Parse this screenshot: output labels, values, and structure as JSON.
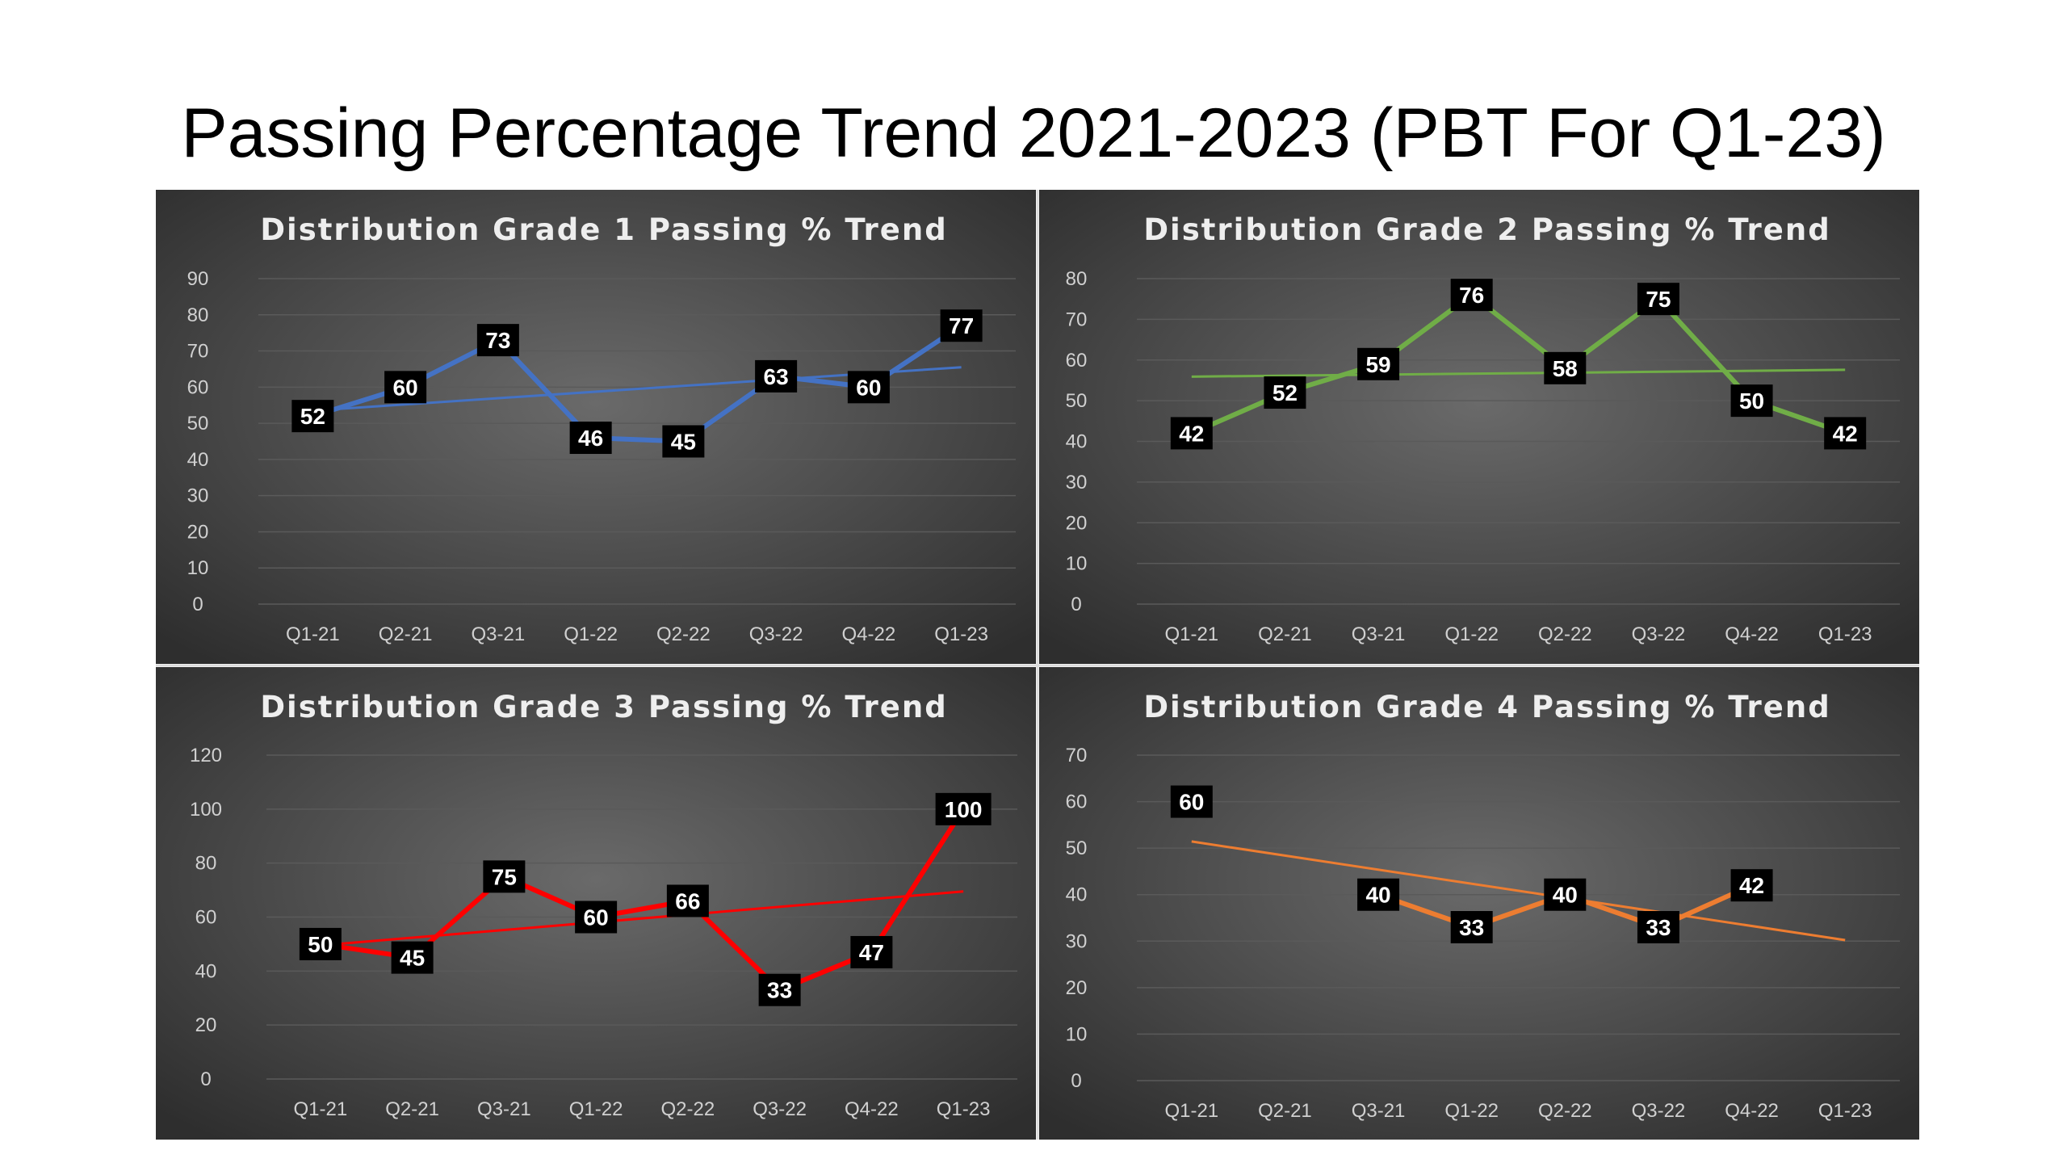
{
  "page_title": "Passing Percentage Trend 2021-2023 (PBT For Q1-23)",
  "chart_data": [
    {
      "type": "line",
      "title": "Distribution Grade 1 Passing % Trend",
      "categories": [
        "Q1-21",
        "Q2-21",
        "Q3-21",
        "Q1-22",
        "Q2-22",
        "Q3-22",
        "Q4-22",
        "Q1-23"
      ],
      "values": [
        52,
        60,
        73,
        46,
        45,
        63,
        60,
        77
      ],
      "ylim": [
        0,
        90
      ],
      "yticks": [
        0,
        10,
        20,
        30,
        40,
        50,
        60,
        70,
        80,
        90
      ],
      "color": "#4472c4",
      "trendline": "linear",
      "grid": true
    },
    {
      "type": "line",
      "title": "Distribution Grade 2 Passing % Trend",
      "categories": [
        "Q1-21",
        "Q2-21",
        "Q3-21",
        "Q1-22",
        "Q2-22",
        "Q3-22",
        "Q4-22",
        "Q1-23"
      ],
      "values": [
        42,
        52,
        59,
        76,
        58,
        75,
        50,
        42
      ],
      "ylim": [
        0,
        80
      ],
      "yticks": [
        0,
        10,
        20,
        30,
        40,
        50,
        60,
        70,
        80
      ],
      "color": "#70ad47",
      "trendline": "linear",
      "grid": true
    },
    {
      "type": "line",
      "title": "Distribution Grade 3 Passing % Trend",
      "categories": [
        "Q1-21",
        "Q2-21",
        "Q3-21",
        "Q1-22",
        "Q2-22",
        "Q3-22",
        "Q4-22",
        "Q1-23"
      ],
      "values": [
        50,
        45,
        75,
        60,
        66,
        33,
        47,
        100
      ],
      "ylim": [
        0,
        120
      ],
      "yticks": [
        0,
        20,
        40,
        60,
        80,
        100,
        120
      ],
      "color": "#ff0000",
      "trendline": "linear",
      "grid": true
    },
    {
      "type": "line",
      "title": "Distribution Grade 4 Passing % Trend",
      "categories": [
        "Q1-21",
        "Q2-21",
        "Q3-21",
        "Q1-22",
        "Q2-22",
        "Q3-22",
        "Q4-22",
        "Q1-23"
      ],
      "values": [
        60,
        null,
        40,
        33,
        40,
        33,
        42,
        null
      ],
      "ylim": [
        0,
        70
      ],
      "yticks": [
        0,
        10,
        20,
        30,
        40,
        50,
        60,
        70
      ],
      "color": "#ed7d31",
      "trendline": "linear",
      "grid": true
    }
  ]
}
